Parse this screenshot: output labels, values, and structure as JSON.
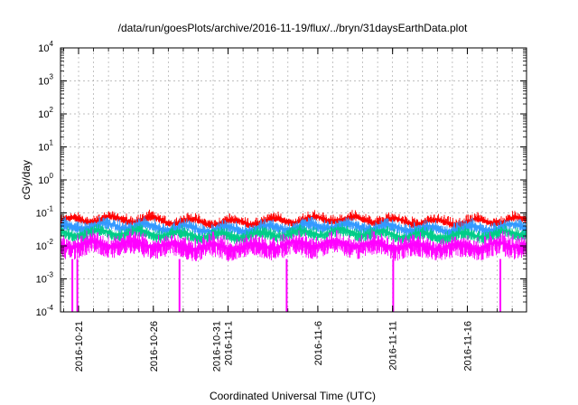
{
  "chart_data": {
    "type": "line",
    "title": "/data/run/goesPlots/archive/2016-11-19/flux/../bryn/31daysEarthData.plot",
    "xlabel": "Coordinated Universal Time (UTC)",
    "ylabel": "cGy/day",
    "yscale": "log",
    "ylim": [
      0.0001,
      10000
    ],
    "xlim": [
      "2016-10-19T19:00",
      "2016-11-19T23:00"
    ],
    "grid": true,
    "y_ticks": [
      {
        "value": 0.0001,
        "base": "10",
        "exp": "-4"
      },
      {
        "value": 0.001,
        "base": "10",
        "exp": "-3"
      },
      {
        "value": 0.01,
        "base": "10",
        "exp": "-2"
      },
      {
        "value": 0.1,
        "base": "10",
        "exp": "-1"
      },
      {
        "value": 1,
        "base": "10",
        "exp": "0"
      },
      {
        "value": 10,
        "base": "10",
        "exp": "1"
      },
      {
        "value": 100,
        "base": "10",
        "exp": "2"
      },
      {
        "value": 1000,
        "base": "10",
        "exp": "3"
      },
      {
        "value": 10000,
        "base": "10",
        "exp": "4"
      }
    ],
    "x_ticks": [
      {
        "date": "2016-10-21",
        "lines": [
          "2016-10-21"
        ]
      },
      {
        "date": "2016-10-26",
        "lines": [
          "2016-10-26"
        ]
      },
      {
        "date": "2016-10-31",
        "lines": [
          "2016-10-31",
          "2016-11-1"
        ]
      },
      {
        "date": "2016-11-06",
        "lines": [
          "2016-11-6"
        ]
      },
      {
        "date": "2016-11-11",
        "lines": [
          "2016-11-11"
        ]
      },
      {
        "date": "2016-11-16",
        "lines": [
          "2016-11-16"
        ]
      }
    ],
    "series": [
      {
        "color": "#ff0000",
        "typical": 0.055,
        "low": 0.04,
        "high": 0.09
      },
      {
        "color": "#3399ff",
        "typical": 0.035,
        "low": 0.02,
        "high": 0.06
      },
      {
        "color": "#00cc88",
        "typical": 0.022,
        "low": 0.012,
        "high": 0.035
      },
      {
        "color": "#ff00ff",
        "typical": 0.01,
        "low": 0.003,
        "high": 0.025
      }
    ],
    "dips": [
      {
        "date": "2016-10-20T14:00",
        "series": "#ff00ff",
        "to": 0.0001
      },
      {
        "date": "2016-10-20T22:00",
        "series": "#ff00ff",
        "to": 0.0001
      },
      {
        "date": "2016-10-27T18:00",
        "series": "#ff00ff",
        "to": 0.0001
      },
      {
        "date": "2016-11-03T22:00",
        "series": "#ff00ff",
        "to": 0.0001
      },
      {
        "date": "2016-11-11T01:00",
        "series": "#ff00ff",
        "to": 0.0001
      },
      {
        "date": "2016-11-18T05:00",
        "series": "#ff00ff",
        "to": 0.0001
      }
    ]
  }
}
